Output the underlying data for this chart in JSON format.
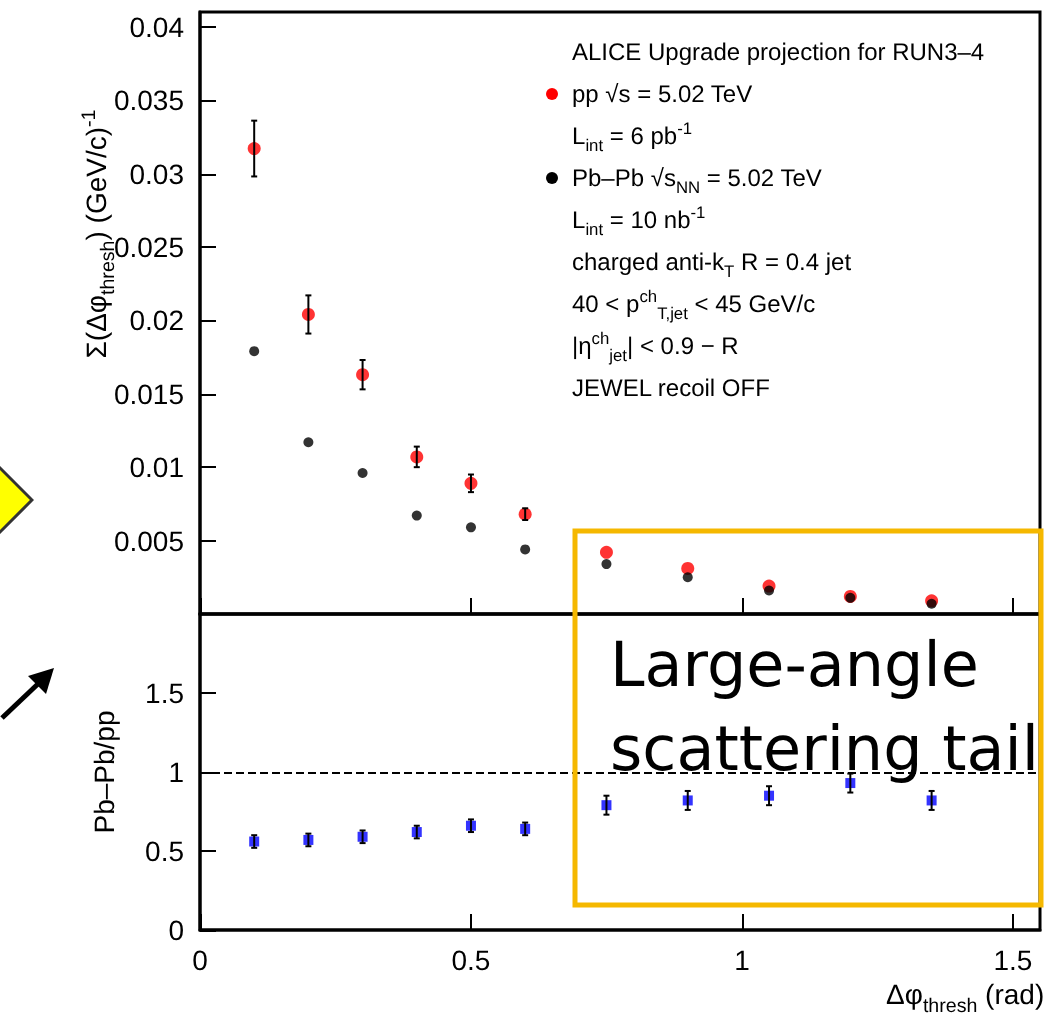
{
  "chart_data": [
    {
      "type": "scatter",
      "ylabel": "Σ(Δφ$_{thresh}$) (GeV/c)$^{-1}$",
      "x": [
        0.1,
        0.2,
        0.3,
        0.4,
        0.5,
        0.6,
        0.75,
        0.9,
        1.05,
        1.2,
        1.35
      ],
      "xlim": [
        0,
        1.55
      ],
      "xticks": [
        0,
        0.5,
        1,
        1.5
      ],
      "ylim": [
        0,
        0.041
      ],
      "yticks": [
        0.005,
        0.01,
        0.015,
        0.02,
        0.025,
        0.03,
        0.035,
        0.04
      ],
      "tick_labels": "y",
      "marker": "circle",
      "legend": "top right",
      "grid": false,
      "series": [
        {
          "name": "pp √s = 5.02 TeV",
          "color": "#ff0000",
          "values": [
            0.0317,
            0.0204,
            0.0163,
            0.0107,
            0.0089,
            0.0068,
            0.0042,
            0.0031,
            0.0019,
            0.0012,
            0.0009
          ],
          "errors": [
            0.0019,
            0.0013,
            0.001,
            0.0007,
            0.0006,
            0.0004,
            null,
            null,
            null,
            null,
            null
          ]
        },
        {
          "name": "Pb–Pb √s$_{NN}$ = 5.02 TeV",
          "color": "#000000",
          "values": [
            0.0179,
            0.0117,
            0.0096,
            0.0067,
            0.0059,
            0.0044,
            0.0034,
            0.0025,
            0.0016,
            0.0011,
            0.0007
          ]
        }
      ],
      "annotations": [
        "ALICE Upgrade projection for RUN3–4",
        "L$_{int}$ = 6 pb$^{-1}$",
        "L$_{int}$ = 10 nb$^{-1}$",
        "charged anti-k$_{T}$ R = 0.4 jet",
        "40 < p$^{ch}$$_{T,jet}$ < 45 GeV/c",
        "|η$^{ch}$$_{jet}$| < 0.9 − R",
        "JEWEL recoil OFF"
      ]
    },
    {
      "type": "scatter",
      "xlabel": "Δφ$_{thresh}$ (rad)",
      "ylabel": "Pb–Pb/pp",
      "x": [
        0.1,
        0.2,
        0.3,
        0.4,
        0.5,
        0.6,
        0.75,
        0.9,
        1.05,
        1.2,
        1.35
      ],
      "xlim": [
        0,
        1.55
      ],
      "xticks": [
        0,
        0.5,
        1,
        1.5
      ],
      "ylim": [
        0,
        2
      ],
      "yticks": [
        0,
        0.5,
        1,
        1.5
      ],
      "marker": "square",
      "grid": false,
      "series": [
        {
          "color": "#0000ff",
          "values": [
            0.56,
            0.57,
            0.59,
            0.62,
            0.66,
            0.64,
            0.79,
            0.82,
            0.85,
            0.93,
            0.82
          ],
          "errors": [
            0.04,
            0.04,
            0.04,
            0.04,
            0.04,
            0.04,
            0.06,
            0.06,
            0.06,
            0.06,
            0.06
          ]
        }
      ],
      "ref_lines": [
        {
          "axis": "y",
          "value": 1,
          "line_style": "dashed",
          "color": "#000000"
        }
      ],
      "annotations": [
        "Large-angle scattering tail"
      ]
    }
  ]
}
